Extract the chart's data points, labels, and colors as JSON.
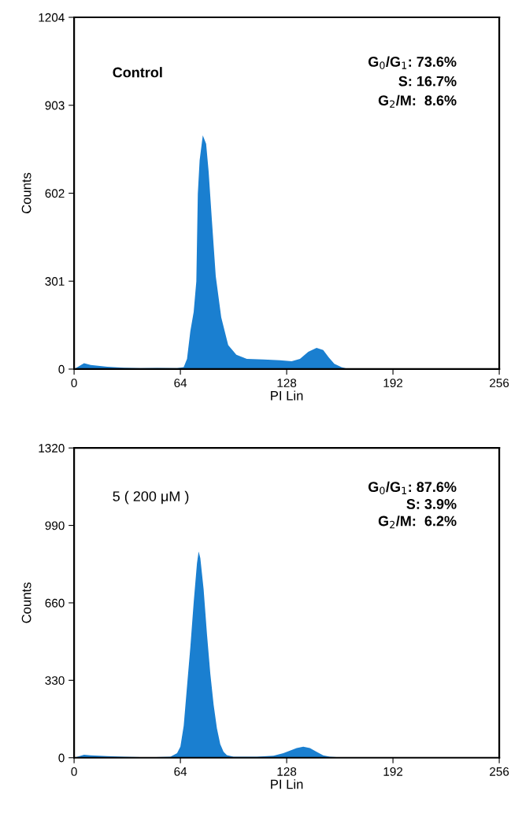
{
  "chart_data": [
    {
      "type": "area",
      "xlabel": "PI Lin",
      "ylabel": "Counts",
      "color": "#1a7fd0",
      "x": [
        0,
        2,
        6,
        10,
        20,
        30,
        40,
        50,
        62,
        66,
        68,
        70,
        72,
        73.6,
        74.5,
        75.6,
        77.5,
        79.5,
        81,
        83,
        85.3,
        88.6,
        92.8,
        97.7,
        104,
        114,
        124,
        131,
        136,
        141,
        146,
        150,
        153.4,
        156.7,
        161,
        164,
        256
      ],
      "values": [
        0,
        7,
        20,
        14,
        8,
        5,
        3,
        4,
        3,
        7,
        35,
        130,
        195,
        300,
        600,
        715,
        800,
        771,
        677,
        507,
        318,
        177,
        82,
        49,
        35,
        33,
        30,
        27,
        35,
        59,
        73,
        65,
        40,
        18,
        7,
        2,
        0
      ],
      "xlim": [
        0,
        256
      ],
      "xticks": [
        0,
        64,
        128,
        192,
        256
      ],
      "ylim": [
        0,
        1204
      ],
      "yticks": [
        0,
        301,
        602,
        903,
        1204
      ],
      "grid": false,
      "annotations": [
        "Control",
        "G$_{0}$/G$_{1}$: 73.6%",
        "S: 16.7%",
        "G$_{2}$/M:  8.6%"
      ]
    },
    {
      "type": "area",
      "xlabel": "PI Lin",
      "ylabel": "Counts",
      "color": "#1a7fd0",
      "x": [
        0,
        6,
        10,
        20,
        30,
        45,
        58,
        62,
        64,
        66,
        68,
        70,
        72,
        74,
        75,
        76,
        78,
        80,
        82,
        84,
        86,
        88,
        90,
        92,
        96,
        110,
        120,
        126,
        130,
        134,
        138,
        142,
        146,
        150,
        154,
        160,
        170,
        256
      ],
      "values": [
        0,
        13,
        10,
        7,
        4,
        2,
        4,
        19,
        47,
        136,
        304,
        471,
        661,
        829,
        879,
        851,
        717,
        527,
        360,
        226,
        125,
        58,
        25,
        11,
        4,
        4,
        8,
        19,
        30,
        41,
        47,
        41,
        25,
        10,
        4,
        2,
        0,
        0
      ],
      "xlim": [
        0,
        256
      ],
      "xticks": [
        0,
        64,
        128,
        192,
        256
      ],
      "ylim": [
        0,
        1320
      ],
      "yticks": [
        0,
        330,
        660,
        990,
        1320
      ],
      "grid": false,
      "annotations": [
        "5 ( 200 μM )",
        "G$_{0}$/G$_{1}$: 87.6%",
        "S: 3.9%",
        "G$_{2}$/M:  6.2%"
      ]
    }
  ]
}
